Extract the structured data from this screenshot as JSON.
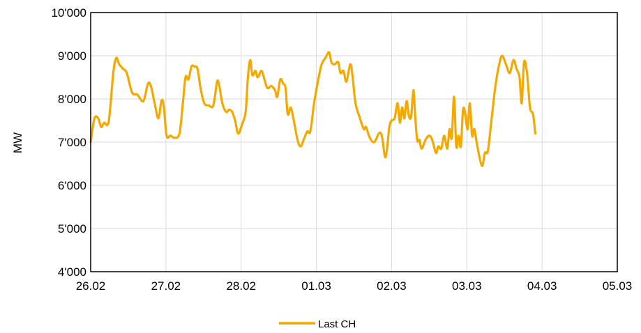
{
  "chart_data": {
    "type": "line",
    "xlabel": "",
    "ylabel": "MW",
    "ylim": [
      4000,
      10000
    ],
    "yticks": [
      4000,
      5000,
      6000,
      7000,
      8000,
      9000,
      10000
    ],
    "ytick_labels": [
      "4'000",
      "5'000",
      "6'000",
      "7'000",
      "8'000",
      "9'000",
      "10'000"
    ],
    "xticks": [
      "26.02",
      "27.02",
      "28.02",
      "01.03",
      "02.03",
      "03.03",
      "04.03",
      "05.03"
    ],
    "xlim_days": [
      0,
      7
    ],
    "grid": true,
    "legend_position": "bottom-center",
    "colors": {
      "series": "#F4A900",
      "grid": "#d9d9d9",
      "axis": "#000000"
    },
    "series": [
      {
        "name": "Last CH",
        "points": [
          [
            0.0,
            7000
          ],
          [
            0.05,
            7550
          ],
          [
            0.1,
            7550
          ],
          [
            0.14,
            7350
          ],
          [
            0.18,
            7450
          ],
          [
            0.24,
            7480
          ],
          [
            0.3,
            8600
          ],
          [
            0.34,
            8950
          ],
          [
            0.38,
            8800
          ],
          [
            0.43,
            8700
          ],
          [
            0.48,
            8600
          ],
          [
            0.55,
            8150
          ],
          [
            0.62,
            8100
          ],
          [
            0.7,
            7950
          ],
          [
            0.76,
            8350
          ],
          [
            0.8,
            8300
          ],
          [
            0.85,
            7900
          ],
          [
            0.9,
            7550
          ],
          [
            0.94,
            7950
          ],
          [
            0.97,
            7850
          ],
          [
            1.01,
            7150
          ],
          [
            1.06,
            7150
          ],
          [
            1.12,
            7100
          ],
          [
            1.18,
            7200
          ],
          [
            1.22,
            7800
          ],
          [
            1.26,
            8500
          ],
          [
            1.3,
            8450
          ],
          [
            1.34,
            8750
          ],
          [
            1.38,
            8750
          ],
          [
            1.42,
            8700
          ],
          [
            1.46,
            8250
          ],
          [
            1.51,
            7900
          ],
          [
            1.57,
            7850
          ],
          [
            1.63,
            7850
          ],
          [
            1.68,
            8400
          ],
          [
            1.71,
            8300
          ],
          [
            1.75,
            7900
          ],
          [
            1.8,
            7700
          ],
          [
            1.84,
            7750
          ],
          [
            1.88,
            7700
          ],
          [
            1.92,
            7500
          ],
          [
            1.96,
            7200
          ],
          [
            2.01,
            7400
          ],
          [
            2.06,
            7700
          ],
          [
            2.09,
            8500
          ],
          [
            2.12,
            8900
          ],
          [
            2.15,
            8550
          ],
          [
            2.19,
            8650
          ],
          [
            2.22,
            8500
          ],
          [
            2.27,
            8650
          ],
          [
            2.31,
            8450
          ],
          [
            2.35,
            8250
          ],
          [
            2.4,
            8300
          ],
          [
            2.45,
            8200
          ],
          [
            2.48,
            8050
          ],
          [
            2.52,
            8450
          ],
          [
            2.56,
            8350
          ],
          [
            2.59,
            8250
          ],
          [
            2.62,
            7650
          ],
          [
            2.66,
            7800
          ],
          [
            2.7,
            7500
          ],
          [
            2.75,
            7050
          ],
          [
            2.79,
            6900
          ],
          [
            2.83,
            7050
          ],
          [
            2.88,
            7250
          ],
          [
            2.92,
            7250
          ],
          [
            2.97,
            7900
          ],
          [
            3.02,
            8400
          ],
          [
            3.07,
            8800
          ],
          [
            3.12,
            8950
          ],
          [
            3.17,
            9080
          ],
          [
            3.2,
            8850
          ],
          [
            3.24,
            8800
          ],
          [
            3.29,
            8850
          ],
          [
            3.32,
            8600
          ],
          [
            3.36,
            8650
          ],
          [
            3.4,
            8400
          ],
          [
            3.45,
            8800
          ],
          [
            3.48,
            8550
          ],
          [
            3.52,
            7900
          ],
          [
            3.58,
            7550
          ],
          [
            3.63,
            7300
          ],
          [
            3.66,
            7350
          ],
          [
            3.71,
            7100
          ],
          [
            3.77,
            7000
          ],
          [
            3.83,
            7200
          ],
          [
            3.87,
            7150
          ],
          [
            3.92,
            6650
          ],
          [
            3.97,
            7350
          ],
          [
            4.0,
            7500
          ],
          [
            4.04,
            7550
          ],
          [
            4.08,
            7900
          ],
          [
            4.11,
            7450
          ],
          [
            4.14,
            7800
          ],
          [
            4.17,
            7550
          ],
          [
            4.2,
            7950
          ],
          [
            4.23,
            7600
          ],
          [
            4.26,
            7600
          ],
          [
            4.29,
            8200
          ],
          [
            4.31,
            7700
          ],
          [
            4.34,
            7050
          ],
          [
            4.37,
            7050
          ],
          [
            4.4,
            6850
          ],
          [
            4.45,
            7050
          ],
          [
            4.5,
            7150
          ],
          [
            4.54,
            7050
          ],
          [
            4.59,
            6750
          ],
          [
            4.62,
            6900
          ],
          [
            4.66,
            6850
          ],
          [
            4.7,
            7150
          ],
          [
            4.74,
            6850
          ],
          [
            4.77,
            7300
          ],
          [
            4.8,
            7100
          ],
          [
            4.83,
            8050
          ],
          [
            4.86,
            6900
          ],
          [
            4.89,
            7150
          ],
          [
            4.92,
            6900
          ],
          [
            4.95,
            7750
          ],
          [
            4.98,
            7650
          ],
          [
            5.01,
            7300
          ],
          [
            5.04,
            7900
          ],
          [
            5.07,
            7150
          ],
          [
            5.1,
            7300
          ],
          [
            5.14,
            6900
          ],
          [
            5.2,
            6450
          ],
          [
            5.24,
            6750
          ],
          [
            5.28,
            6800
          ],
          [
            5.33,
            7550
          ],
          [
            5.38,
            8300
          ],
          [
            5.43,
            8800
          ],
          [
            5.47,
            9000
          ],
          [
            5.52,
            8800
          ],
          [
            5.57,
            8600
          ],
          [
            5.62,
            8900
          ],
          [
            5.66,
            8700
          ],
          [
            5.7,
            8500
          ],
          [
            5.73,
            7900
          ],
          [
            5.76,
            8850
          ],
          [
            5.8,
            8600
          ],
          [
            5.84,
            7800
          ],
          [
            5.88,
            7650
          ],
          [
            5.91,
            7200
          ]
        ]
      }
    ]
  }
}
